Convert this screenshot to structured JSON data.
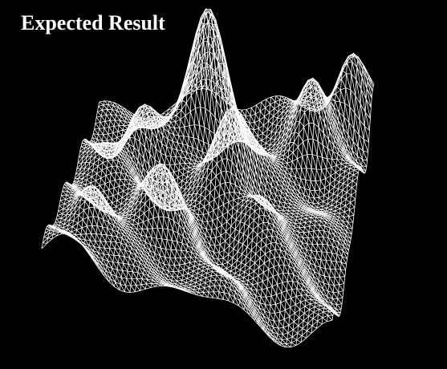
{
  "render": {
    "caption": "Expected Result",
    "background_color": "#000000",
    "wireframe_color": "#ffffff",
    "surface_kind": "wireframe-terrain-mesh"
  }
}
